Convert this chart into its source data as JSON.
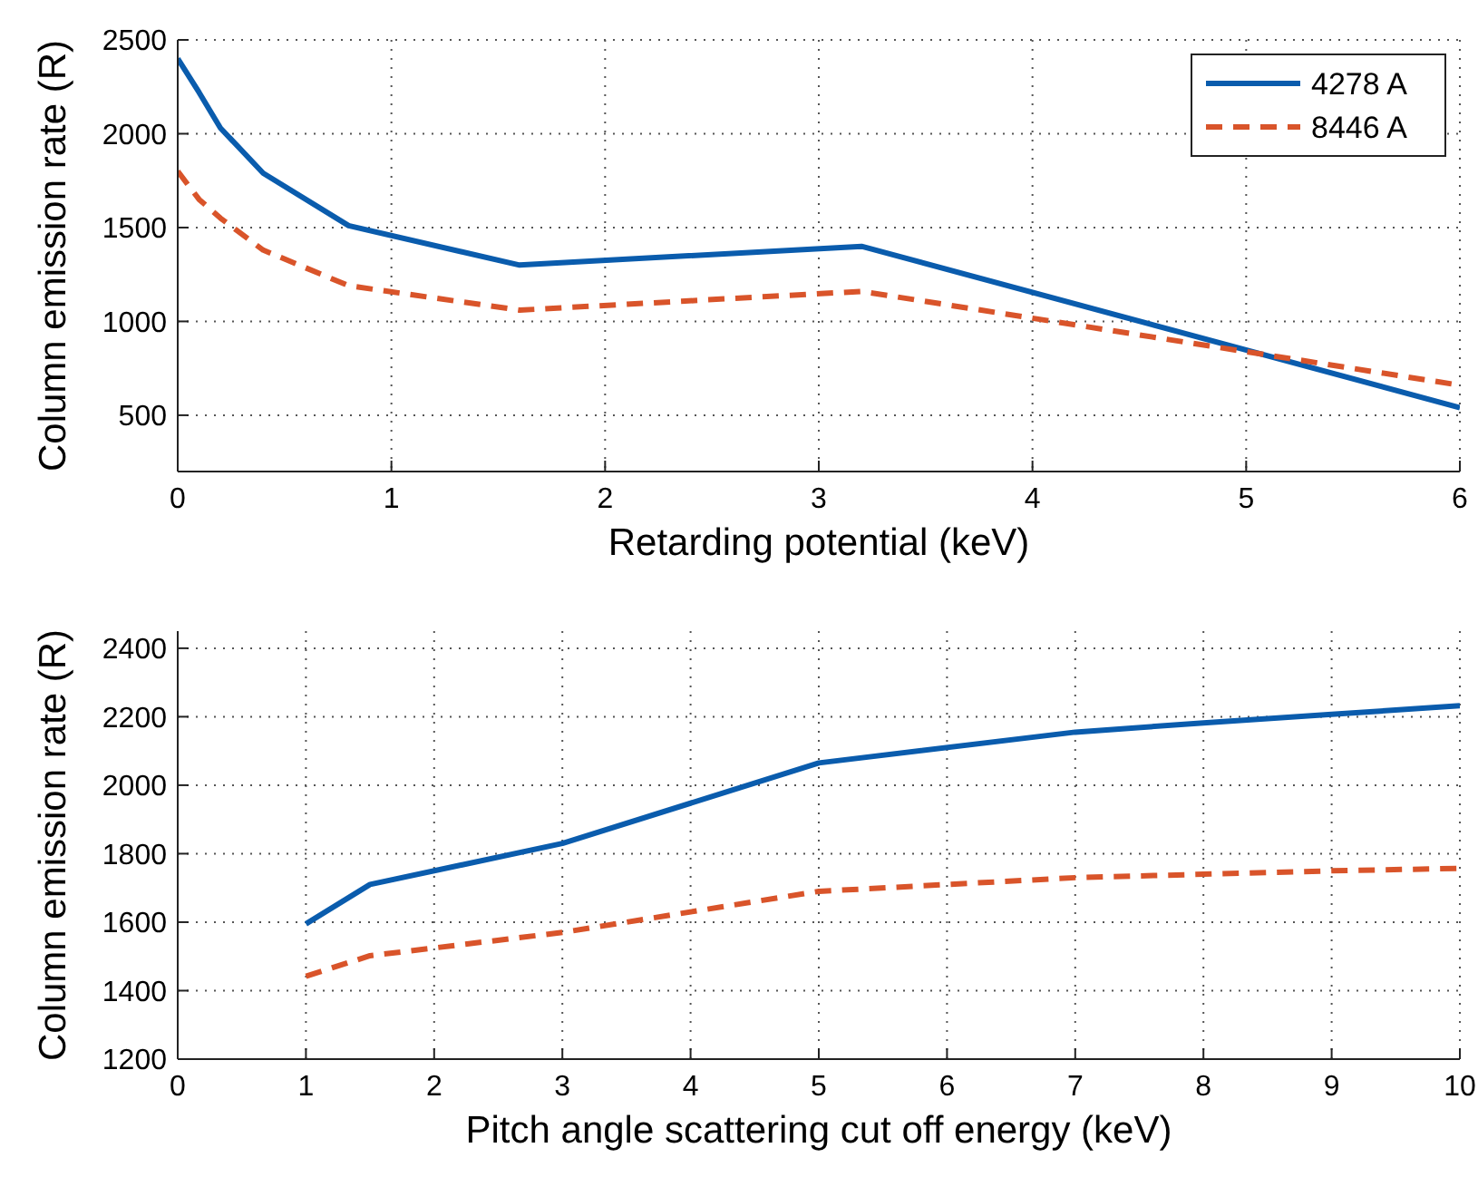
{
  "chart_data": [
    {
      "type": "line",
      "xlabel": "Retarding potential (keV)",
      "ylabel": "Column emission rate (R)",
      "x": [
        0,
        0.1,
        0.2,
        0.4,
        0.8,
        1.6,
        3.2,
        6
      ],
      "xlim": [
        0,
        6
      ],
      "xticks": [
        0,
        1,
        2,
        3,
        4,
        5,
        6
      ],
      "ylim": [
        200,
        2500
      ],
      "yticks": [
        500,
        1000,
        1500,
        2000,
        2500
      ],
      "grid": true,
      "legend": "top right",
      "series": [
        {
          "name": "4278 A",
          "color": "#0a5cad",
          "line_style": "solid",
          "values": [
            2400,
            2220,
            2030,
            1790,
            1510,
            1300,
            1400,
            540
          ]
        },
        {
          "name": "8446 A",
          "color": "#d9542a",
          "line_style": "dashed",
          "values": [
            1800,
            1650,
            1550,
            1380,
            1190,
            1060,
            1160,
            660
          ]
        }
      ]
    },
    {
      "type": "line",
      "xlabel": "Pitch angle scattering cut off energy (keV)",
      "ylabel": "Column emission rate (R)",
      "x": [
        1,
        1.5,
        3,
        5,
        7,
        8,
        9,
        10
      ],
      "xlim": [
        0,
        10
      ],
      "xticks": [
        0,
        1,
        2,
        3,
        4,
        5,
        6,
        7,
        8,
        9,
        10
      ],
      "ylim": [
        1200,
        2450
      ],
      "yticks": [
        1200,
        1400,
        1600,
        1800,
        2000,
        2200,
        2400
      ],
      "grid": true,
      "series": [
        {
          "color": "#0a5cad",
          "line_style": "solid",
          "values": [
            1595,
            1710,
            1830,
            2065,
            2155,
            2182,
            2207,
            2232
          ]
        },
        {
          "color": "#d9542a",
          "line_style": "dashed",
          "values": [
            1442,
            1502,
            1570,
            1690,
            1730,
            1740,
            1750,
            1757
          ]
        }
      ]
    }
  ]
}
